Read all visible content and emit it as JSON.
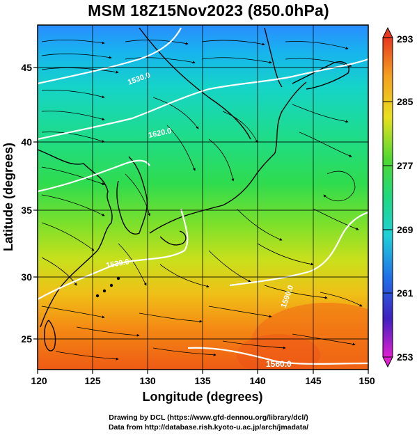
{
  "title": "MSM 18Z15Nov2023 (850.0hPa)",
  "x_axis": {
    "label": "Longitude (degrees)",
    "ticks": [
      "120",
      "125",
      "130",
      "135",
      "140",
      "145",
      "150"
    ]
  },
  "y_axis": {
    "label": "Latitude  (degrees)",
    "ticks": [
      "25",
      "30",
      "35",
      "40",
      "45"
    ]
  },
  "colorbar": {
    "ticks": [
      "293",
      "285",
      "277",
      "269",
      "261",
      "253"
    ],
    "min": 253,
    "max": 293
  },
  "contour_labels": [
    "1560.0",
    "1620.0",
    "1530.0",
    "1590.0",
    "1530.0"
  ],
  "credits": {
    "line1": "Drawing by DCL (https://www.gfd-dennou.org/library/dcl/)",
    "line2": "Data from http://database.rish.kyoto-u.ac.jp/arch/jmadata/"
  },
  "chart_data": {
    "type": "heatmap",
    "title": "MSM 18Z15Nov2023 (850.0hPa)",
    "xlabel": "Longitude (degrees)",
    "ylabel": "Latitude  (degrees)",
    "xlim": [
      120,
      150
    ],
    "ylim": [
      22.4,
      47.6
    ],
    "x_ticks": [
      120,
      125,
      130,
      135,
      140,
      145,
      150
    ],
    "y_ticks": [
      25,
      30,
      35,
      40,
      45
    ],
    "color_scale": {
      "min": 253,
      "max": 293,
      "ticks": [
        293,
        285,
        277,
        269,
        261,
        253
      ]
    },
    "field_approx_by_latitude": [
      {
        "lat": 47,
        "value": 265
      },
      {
        "lat": 44,
        "value": 270
      },
      {
        "lat": 40,
        "value": 274
      },
      {
        "lat": 36,
        "value": 276
      },
      {
        "lat": 32,
        "value": 279
      },
      {
        "lat": 28,
        "value": 283
      },
      {
        "lat": 24,
        "value": 287
      }
    ],
    "grid": true,
    "overlays": [
      "streamlines",
      "geopotential height contours",
      "coastlines"
    ]
  }
}
